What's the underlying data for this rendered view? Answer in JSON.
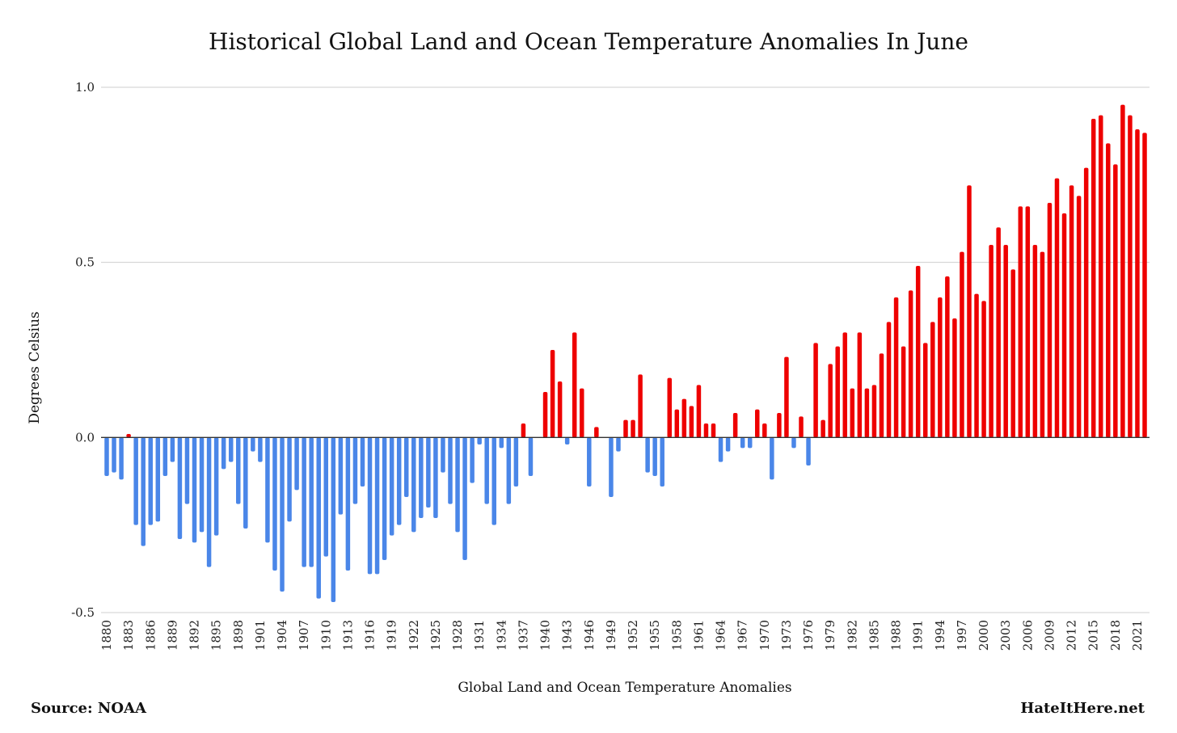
{
  "chart_data": {
    "type": "bar",
    "title": "Historical Global Land and Ocean Temperature Anomalies In June",
    "xlabel": "Global Land and Ocean Temperature Anomalies",
    "ylabel": "Degrees Celsius",
    "ylim": [
      -0.5,
      1.0
    ],
    "yticks": [
      -0.5,
      0.0,
      0.5,
      1.0
    ],
    "ytick_labels": [
      "-0.5",
      "0.0",
      "0.5",
      "1.0"
    ],
    "grid": true,
    "legend": "none",
    "colors": {
      "positive": "#ee0000",
      "negative": "#4a86e8"
    },
    "x_tick_labels": [
      "1880",
      "1883",
      "1886",
      "1889",
      "1892",
      "1895",
      "1898",
      "1901",
      "1904",
      "1907",
      "1910",
      "1913",
      "1916",
      "1919",
      "1922",
      "1925",
      "1928",
      "1931",
      "1934",
      "1937",
      "1940",
      "1943",
      "1946",
      "1949",
      "1952",
      "1955",
      "1958",
      "1961",
      "1964",
      "1967",
      "1970",
      "1973",
      "1976",
      "1979",
      "1982",
      "1985",
      "1988",
      "1991",
      "1994",
      "1997",
      "2000",
      "2003",
      "2006",
      "2009",
      "2012",
      "2015",
      "2018",
      "2021"
    ],
    "x_start": 1880,
    "series": [
      {
        "values": [
          -0.11,
          -0.1,
          -0.12,
          0.01,
          -0.25,
          -0.31,
          -0.25,
          -0.24,
          -0.11,
          -0.07,
          -0.29,
          -0.19,
          -0.3,
          -0.27,
          -0.37,
          -0.28,
          -0.09,
          -0.07,
          -0.19,
          -0.26,
          -0.04,
          -0.07,
          -0.3,
          -0.38,
          -0.44,
          -0.24,
          -0.15,
          -0.37,
          -0.37,
          -0.46,
          -0.34,
          -0.47,
          -0.22,
          -0.38,
          -0.19,
          -0.14,
          -0.39,
          -0.39,
          -0.35,
          -0.28,
          -0.25,
          -0.17,
          -0.27,
          -0.23,
          -0.2,
          -0.23,
          -0.1,
          -0.19,
          -0.27,
          -0.35,
          -0.13,
          -0.02,
          -0.19,
          -0.25,
          -0.03,
          -0.19,
          -0.14,
          0.04,
          -0.11,
          0.0,
          0.13,
          0.25,
          0.16,
          -0.02,
          0.3,
          0.14,
          -0.14,
          0.03,
          0.0,
          -0.17,
          -0.04,
          0.05,
          0.05,
          0.18,
          -0.1,
          -0.11,
          -0.14,
          0.17,
          0.08,
          0.11,
          0.09,
          0.15,
          0.04,
          0.04,
          -0.07,
          -0.04,
          0.07,
          -0.03,
          -0.03,
          0.08,
          0.04,
          -0.12,
          0.07,
          0.23,
          -0.03,
          0.06,
          -0.08,
          0.27,
          0.05,
          0.21,
          0.26,
          0.3,
          0.14,
          0.3,
          0.14,
          0.15,
          0.24,
          0.33,
          0.4,
          0.26,
          0.42,
          0.49,
          0.27,
          0.33,
          0.4,
          0.46,
          0.34,
          0.53,
          0.72,
          0.41,
          0.39,
          0.55,
          0.6,
          0.55,
          0.48,
          0.66,
          0.66,
          0.55,
          0.53,
          0.67,
          0.74,
          0.64,
          0.72,
          0.69,
          0.77,
          0.91,
          0.92,
          0.84,
          0.78,
          0.95,
          0.92,
          0.88,
          0.87
        ]
      }
    ]
  },
  "footer": {
    "source": "Source: NOAA",
    "site": "HateItHere.net"
  }
}
